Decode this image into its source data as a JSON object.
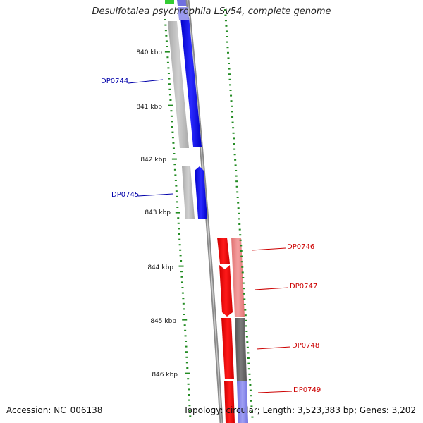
{
  "title": "Desulfotalea psychrophila LSv54, complete genome",
  "footer": {
    "accession": "Accession: NC_006138",
    "summary": "Topology: circular; Length: 3,523,383 bp; Genes: 3,202"
  },
  "ruler": {
    "labels": [
      "840 kbp",
      "841 kbp",
      "842 kbp",
      "843 kbp",
      "844 kbp",
      "845 kbp",
      "846 kbp"
    ]
  },
  "genes": [
    {
      "name": "DP0744",
      "strand": "reverse",
      "color": "#0000ff"
    },
    {
      "name": "DP0745",
      "strand": "reverse",
      "color": "#0000ff"
    },
    {
      "name": "DP0746",
      "strand": "forward",
      "color": "#ff0000"
    },
    {
      "name": "DP0747",
      "strand": "forward",
      "color": "#ff0000"
    },
    {
      "name": "DP0748",
      "strand": "forward",
      "color": "#ff0000"
    },
    {
      "name": "DP0749",
      "strand": "forward",
      "color": "#ff0000"
    }
  ],
  "colors": {
    "tick": "#228b22",
    "backbone": "#808080",
    "reverse_gene": "#0000ff",
    "forward_gene": "#ff0000",
    "reverse_label": "#0000aa",
    "forward_label": "#cc0000"
  }
}
